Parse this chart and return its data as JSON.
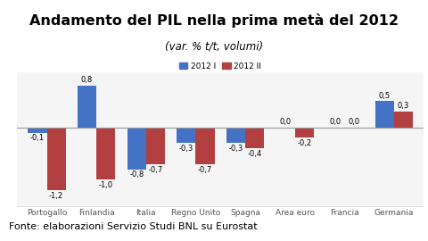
{
  "title": "Andamento del PIL nella prima metà del 2012",
  "subtitle": "(var. % t/t, volumi)",
  "categories": [
    "Portogallo",
    "Finlandia",
    "Italia",
    "Regno Unito",
    "Spagna",
    "Area euro",
    "Francia",
    "Germania"
  ],
  "series1_label": "2012 I",
  "series2_label": "2012 II",
  "series1_values": [
    -0.1,
    0.8,
    -0.8,
    -0.3,
    -0.3,
    0.0,
    0.0,
    0.5
  ],
  "series2_values": [
    -1.2,
    -1.0,
    -0.7,
    -0.7,
    -0.4,
    -0.2,
    0.0,
    0.3
  ],
  "color1": "#4472C4",
  "color2": "#B34040",
  "ylim": [
    -1.5,
    1.05
  ],
  "footer": "Fonte: elaborazioni Servizio Studi BNL su Eurostat",
  "bg_color": "#FFFFFF",
  "plot_bg_color": "#F5F5F5",
  "border_color": "#7EAA97",
  "footer_bg": "#B0CFC4",
  "title_fontsize": 11.5,
  "subtitle_fontsize": 8.5,
  "tick_fontsize": 6.5,
  "label_fontsize": 6.0,
  "legend_fontsize": 6.5,
  "footer_fontsize": 8.0
}
